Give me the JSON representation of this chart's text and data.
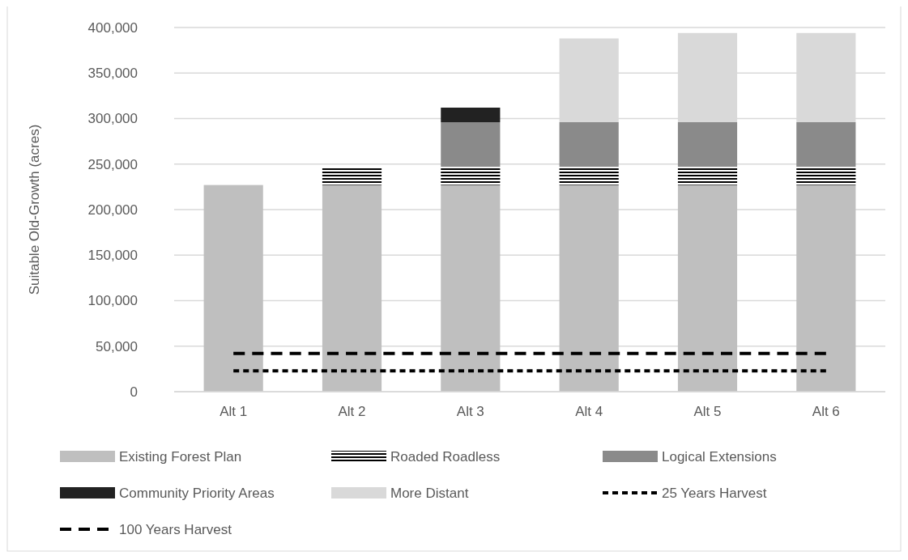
{
  "chart_data": {
    "type": "bar",
    "stacked": true,
    "ylabel": "Suitable Old-Growth (acres)",
    "categories": [
      "Alt 1",
      "Alt 2",
      "Alt 3",
      "Alt 4",
      "Alt 5",
      "Alt 6"
    ],
    "series": [
      {
        "name": "Existing Forest Plan",
        "color": "#bfbfbf",
        "values": [
          227000,
          227000,
          227000,
          227000,
          227000,
          227000
        ]
      },
      {
        "name": "Roaded Roadless",
        "color": "#000000",
        "values": [
          null,
          20000,
          20000,
          20000,
          20000,
          20000
        ]
      },
      {
        "name": "Logical Extensions",
        "color": "#8a8a8a",
        "values": [
          null,
          null,
          49000,
          49000,
          49000,
          49000
        ]
      },
      {
        "name": "Community Priority Areas",
        "color": "#222222",
        "values": [
          null,
          null,
          16000,
          null,
          null,
          null
        ]
      },
      {
        "name": "More Distant",
        "color": "#d9d9d9",
        "values": [
          null,
          null,
          null,
          92000,
          98000,
          98000
        ]
      },
      {
        "name": "25 Years Harvest",
        "type": "line",
        "color": "#000000",
        "line_style": "dotted",
        "values": [
          23000,
          23000,
          23000,
          23000,
          23000,
          23000
        ]
      },
      {
        "name": "100 Years Harvest",
        "type": "line",
        "color": "#000000",
        "line_style": "dashed",
        "values": [
          42000,
          42000,
          42000,
          42000,
          42000,
          42000
        ]
      }
    ],
    "ylim": [
      0,
      400000
    ],
    "yticks": [
      {
        "value": 0,
        "label": "0"
      },
      {
        "value": 50000,
        "label": "50,000"
      },
      {
        "value": 100000,
        "label": "100,000"
      },
      {
        "value": 150000,
        "label": "150,000"
      },
      {
        "value": 200000,
        "label": "200,000"
      },
      {
        "value": 250000,
        "label": "250,000"
      },
      {
        "value": 300000,
        "label": "300,000"
      },
      {
        "value": 350000,
        "label": "350,000"
      },
      {
        "value": 400000,
        "label": "400,000"
      }
    ],
    "grid": "y",
    "legend": "bottom"
  }
}
